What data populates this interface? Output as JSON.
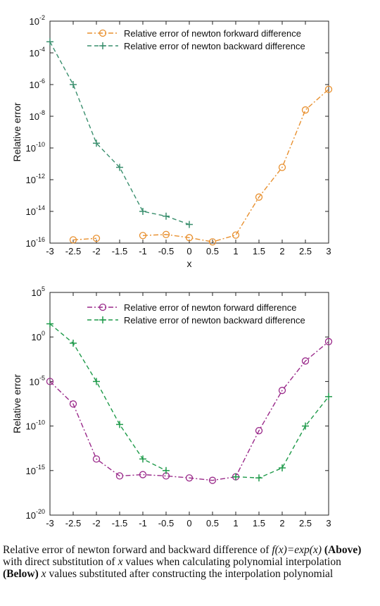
{
  "chart_data": [
    {
      "type": "line",
      "ylabel": "Relative error",
      "xlabel": "x",
      "yscale": "log",
      "ylim": [
        1e-16,
        0.01
      ],
      "xlim": [
        -3,
        3
      ],
      "x_ticks": [
        "-3",
        "-2.5",
        "-2",
        "-1.5",
        "-1",
        "-0.5",
        "0",
        "0.5",
        "1",
        "1.5",
        "2",
        "2.5",
        "3"
      ],
      "y_ticks": [
        {
          "base": "10",
          "exp": "-16"
        },
        {
          "base": "10",
          "exp": "-14"
        },
        {
          "base": "10",
          "exp": "-12"
        },
        {
          "base": "10",
          "exp": "-10"
        },
        {
          "base": "10",
          "exp": "-8"
        },
        {
          "base": "10",
          "exp": "-6"
        },
        {
          "base": "10",
          "exp": "-4"
        },
        {
          "base": "10",
          "exp": "-2"
        }
      ],
      "legend_position": "top-right",
      "series": [
        {
          "name": "Relative error of newton forkward difference",
          "color": "#e8902f",
          "marker": "circle",
          "dash": "dashdot",
          "segments": [
            {
              "x": [
                -2.5,
                -2
              ],
              "y": [
                1.6e-16,
                2e-16
              ]
            },
            {
              "x": [
                -1,
                -0.5,
                0,
                0.5,
                1,
                1.5,
                2,
                2.5,
                3
              ],
              "y": [
                3e-16,
                3.5e-16,
                2.2e-16,
                1.2e-16,
                3.2e-16,
                8e-14,
                6e-12,
                2.5e-08,
                5e-07
              ]
            }
          ]
        },
        {
          "name": "Relative error of newton backward difference",
          "color": "#3a8f6e",
          "marker": "plus",
          "dash": "dashed",
          "segments": [
            {
              "x": [
                -3,
                -2.5,
                -2,
                -1.5,
                -1,
                -0.5,
                0
              ],
              "y": [
                0.0005,
                1e-06,
                2e-10,
                6e-12,
                1e-14,
                5e-15,
                1.5e-15
              ]
            }
          ]
        }
      ]
    },
    {
      "type": "line",
      "ylabel": "Relative error",
      "xlabel": "",
      "yscale": "log",
      "ylim": [
        1e-20,
        100000.0
      ],
      "xlim": [
        -3,
        3
      ],
      "x_ticks": [
        "-3",
        "-2.5",
        "-2",
        "-1.5",
        "-1",
        "-0.5",
        "0",
        "0.5",
        "1",
        "1.5",
        "2",
        "2.5",
        "3"
      ],
      "y_ticks": [
        {
          "base": "10",
          "exp": "-20"
        },
        {
          "base": "10",
          "exp": "-15"
        },
        {
          "base": "10",
          "exp": "-10"
        },
        {
          "base": "10",
          "exp": "-5"
        },
        {
          "base": "10",
          "exp": "0"
        },
        {
          "base": "10",
          "exp": "5"
        }
      ],
      "legend_position": "top-right",
      "series": [
        {
          "name": "Relative error of newton forward difference",
          "color": "#9a2a8a",
          "marker": "circle",
          "dash": "dashdot",
          "segments": [
            {
              "x": [
                -3,
                -2.5,
                -2,
                -1.5,
                -1,
                -0.5,
                0,
                0.5,
                1,
                1.5,
                2,
                2.5,
                3
              ],
              "y": [
                1e-05,
                3e-08,
                2e-14,
                2.5e-16,
                3.5e-16,
                2.5e-16,
                1.5e-16,
                8e-17,
                2e-16,
                3e-11,
                1e-06,
                0.002,
                0.3
              ]
            }
          ]
        },
        {
          "name": "Relative error of newton backward difference",
          "color": "#1f9a4a",
          "marker": "plus",
          "dash": "dashed",
          "segments": [
            {
              "x": [
                -3,
                -2.5,
                -2,
                -1.5,
                -1,
                -0.5
              ],
              "y": [
                30,
                0.2,
                1e-05,
                1.5e-10,
                2e-14,
                1e-15
              ]
            },
            {
              "x": [
                1,
                1.5,
                2,
                2.5,
                3
              ],
              "y": [
                2e-16,
                1.5e-16,
                2e-15,
                1e-10,
                2e-07
              ]
            }
          ]
        }
      ]
    }
  ],
  "caption": {
    "line1_text": "Relative error of newton forward and backward difference of ",
    "line1_formula": "f(x)=exp(x)",
    "above": "(Above)",
    "line2_text_a": " with direct substitution of ",
    "x_var": "x",
    "line2_text_b": " values when calculating polynomial interpolation ",
    "below": "(Below)",
    "line3_text": " values substituted after constructing the interpolation polynomial"
  }
}
